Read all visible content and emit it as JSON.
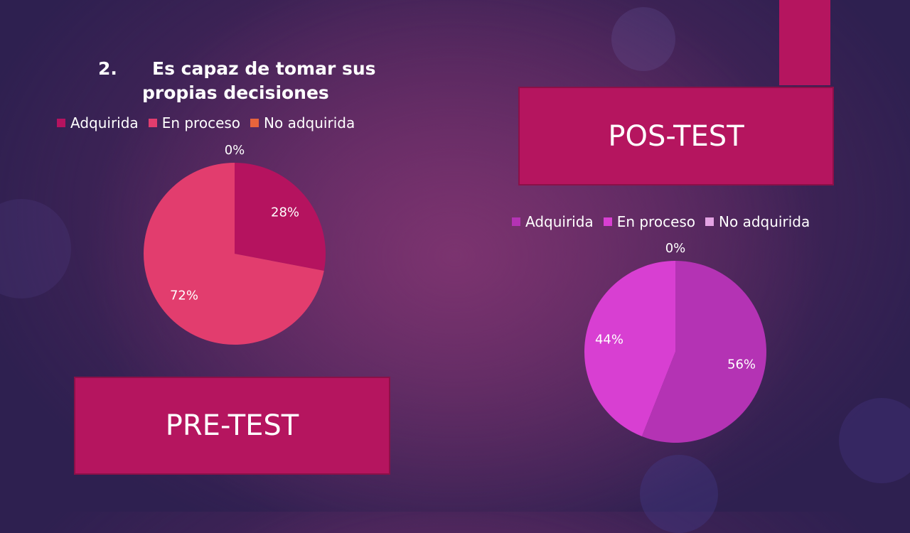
{
  "slide": {
    "title_number": "2.",
    "title_line1": "Es capaz de tomar sus",
    "title_line2": "propias decisiones",
    "pre_label": "PRE-TEST",
    "pos_label": "POS-TEST"
  },
  "chart_data": [
    {
      "type": "pie",
      "title": "2. Es capaz de tomar sus propias decisiones",
      "categories": [
        "Adquirida",
        "En proceso",
        "No adquirida"
      ],
      "values": [
        28,
        72,
        0
      ],
      "data_labels": [
        "28%",
        "72%",
        "0%"
      ],
      "colors": [
        "#b5135f",
        "#e23d6e",
        "#e8643c"
      ],
      "legend": "top"
    },
    {
      "type": "pie",
      "title": "",
      "categories": [
        "Adquirida",
        "En proceso",
        "No adquirida"
      ],
      "values": [
        56,
        44,
        0
      ],
      "data_labels": [
        "56%",
        "44%",
        "0%"
      ],
      "colors": [
        "#b433b4",
        "#d83fd2",
        "#e3a3e3"
      ],
      "legend": "top"
    }
  ]
}
